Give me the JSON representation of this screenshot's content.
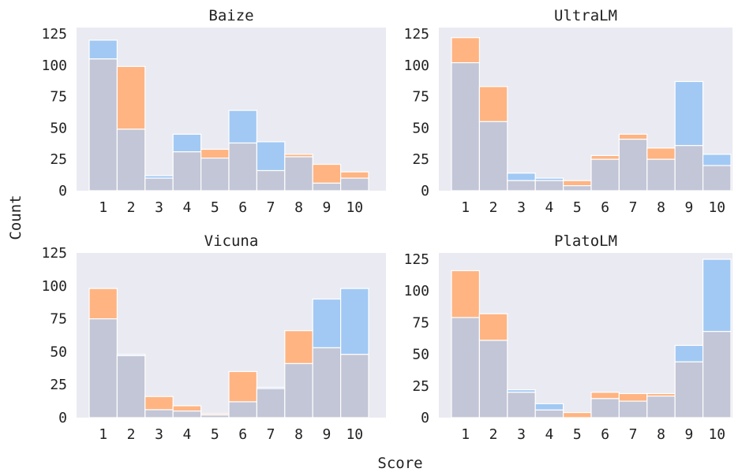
{
  "figure": {
    "xlabel": "Score",
    "ylabel": "Count"
  },
  "colors": {
    "background": "#eaeaf2",
    "series_a": "#a1c9f4",
    "series_b": "#ffb482",
    "overlap": "#c3c6d6",
    "edge": "#ffffff"
  },
  "chart_data": [
    {
      "type": "bar",
      "title": "Baize",
      "categories": [
        "1",
        "2",
        "3",
        "4",
        "5",
        "6",
        "7",
        "8",
        "9",
        "10"
      ],
      "yticks": [
        0,
        25,
        50,
        75,
        100,
        125
      ],
      "ylim": [
        0,
        130
      ],
      "series": [
        {
          "values": [
            120,
            49,
            12,
            45,
            26,
            64,
            39,
            27,
            6,
            10
          ]
        },
        {
          "values": [
            105,
            99,
            10,
            31,
            33,
            38,
            16,
            29,
            21,
            15
          ]
        }
      ]
    },
    {
      "type": "bar",
      "title": "UltraLM",
      "categories": [
        "1",
        "2",
        "3",
        "4",
        "5",
        "6",
        "7",
        "8",
        "9",
        "10"
      ],
      "yticks": [
        0,
        25,
        50,
        75,
        100,
        125
      ],
      "ylim": [
        0,
        130
      ],
      "series": [
        {
          "values": [
            102,
            55,
            14,
            10,
            4,
            25,
            41,
            25,
            87,
            29
          ]
        },
        {
          "values": [
            122,
            83,
            8,
            8,
            8,
            28,
            45,
            34,
            36,
            20
          ]
        }
      ]
    },
    {
      "type": "bar",
      "title": "Vicuna",
      "categories": [
        "1",
        "2",
        "3",
        "4",
        "5",
        "6",
        "7",
        "8",
        "9",
        "10"
      ],
      "yticks": [
        0,
        25,
        50,
        75,
        100,
        125
      ],
      "ylim": [
        0,
        125
      ],
      "series": [
        {
          "values": [
            75,
            48,
            6,
            5,
            2,
            12,
            23,
            41,
            90,
            98
          ]
        },
        {
          "values": [
            98,
            47,
            16,
            9,
            3,
            35,
            22,
            66,
            53,
            48
          ]
        }
      ]
    },
    {
      "type": "bar",
      "title": "PlatoLM",
      "categories": [
        "1",
        "2",
        "3",
        "4",
        "5",
        "6",
        "7",
        "8",
        "9",
        "10"
      ],
      "yticks": [
        0,
        25,
        50,
        75,
        100,
        125
      ],
      "ylim": [
        0,
        130
      ],
      "series": [
        {
          "values": [
            79,
            61,
            22,
            11,
            0,
            15,
            13,
            17,
            57,
            125
          ]
        },
        {
          "values": [
            116,
            82,
            20,
            6,
            4,
            20,
            19,
            19,
            44,
            68
          ]
        }
      ]
    }
  ]
}
